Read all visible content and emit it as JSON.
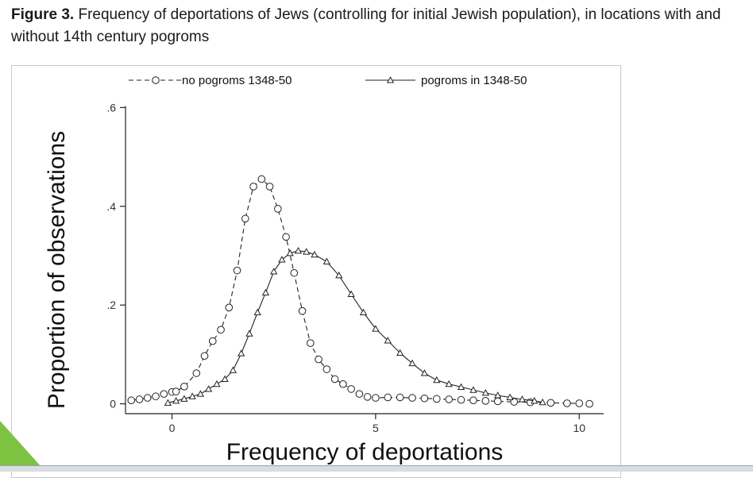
{
  "caption": {
    "label": "Figure 3.",
    "text": "Frequency of deportations of Jews (controlling for initial Jewish population), in locations with and without 14th century pogroms"
  },
  "chart_data": {
    "type": "line",
    "title": "",
    "xlabel": "Frequency of deportations",
    "ylabel": "Proportion of observations",
    "xlim": [
      -1.2,
      10.6
    ],
    "ylim": [
      -0.02,
      0.62
    ],
    "xticks": [
      0,
      5,
      10
    ],
    "xtick_labels": [
      "0",
      "5",
      "10"
    ],
    "yticks": [
      0,
      0.2,
      0.4,
      0.6
    ],
    "ytick_labels": [
      "0",
      ".2",
      ".4",
      ".6"
    ],
    "grid": false,
    "legend_position": "top",
    "series": [
      {
        "name": "no pogroms 1348-50",
        "line_style": "dashed",
        "marker": "circle",
        "color": "#222222",
        "points": [
          [
            -1.0,
            0.007
          ],
          [
            -0.8,
            0.009
          ],
          [
            -0.6,
            0.012
          ],
          [
            -0.4,
            0.015
          ],
          [
            -0.2,
            0.02
          ],
          [
            0.0,
            0.024
          ],
          [
            0.1,
            0.025
          ],
          [
            0.3,
            0.035
          ],
          [
            0.6,
            0.062
          ],
          [
            0.8,
            0.097
          ],
          [
            1.0,
            0.127
          ],
          [
            1.2,
            0.15
          ],
          [
            1.4,
            0.195
          ],
          [
            1.6,
            0.27
          ],
          [
            1.8,
            0.375
          ],
          [
            2.0,
            0.44
          ],
          [
            2.2,
            0.455
          ],
          [
            2.4,
            0.44
          ],
          [
            2.6,
            0.395
          ],
          [
            2.8,
            0.338
          ],
          [
            3.0,
            0.265
          ],
          [
            3.2,
            0.188
          ],
          [
            3.4,
            0.123
          ],
          [
            3.6,
            0.09
          ],
          [
            3.8,
            0.07
          ],
          [
            4.0,
            0.05
          ],
          [
            4.2,
            0.04
          ],
          [
            4.4,
            0.03
          ],
          [
            4.6,
            0.02
          ],
          [
            4.8,
            0.014
          ],
          [
            5.0,
            0.012
          ],
          [
            5.3,
            0.013
          ],
          [
            5.6,
            0.013
          ],
          [
            5.9,
            0.012
          ],
          [
            6.2,
            0.011
          ],
          [
            6.5,
            0.01
          ],
          [
            6.8,
            0.009
          ],
          [
            7.1,
            0.008
          ],
          [
            7.4,
            0.007
          ],
          [
            7.7,
            0.006
          ],
          [
            8.0,
            0.005
          ],
          [
            8.4,
            0.004
          ],
          [
            8.8,
            0.003
          ],
          [
            9.3,
            0.002
          ],
          [
            9.7,
            0.001
          ],
          [
            10.0,
            0.001
          ],
          [
            10.25,
            0.0
          ]
        ]
      },
      {
        "name": "pogroms in 1348-50",
        "line_style": "solid",
        "marker": "triangle",
        "color": "#222222",
        "points": [
          [
            -0.1,
            0.002
          ],
          [
            0.1,
            0.006
          ],
          [
            0.3,
            0.01
          ],
          [
            0.5,
            0.015
          ],
          [
            0.7,
            0.02
          ],
          [
            0.9,
            0.03
          ],
          [
            1.1,
            0.04
          ],
          [
            1.3,
            0.05
          ],
          [
            1.5,
            0.068
          ],
          [
            1.7,
            0.102
          ],
          [
            1.9,
            0.142
          ],
          [
            2.1,
            0.185
          ],
          [
            2.3,
            0.225
          ],
          [
            2.5,
            0.268
          ],
          [
            2.7,
            0.292
          ],
          [
            2.9,
            0.305
          ],
          [
            3.1,
            0.31
          ],
          [
            3.3,
            0.308
          ],
          [
            3.5,
            0.302
          ],
          [
            3.8,
            0.288
          ],
          [
            4.1,
            0.26
          ],
          [
            4.4,
            0.222
          ],
          [
            4.7,
            0.185
          ],
          [
            5.0,
            0.152
          ],
          [
            5.3,
            0.128
          ],
          [
            5.6,
            0.103
          ],
          [
            5.9,
            0.082
          ],
          [
            6.2,
            0.062
          ],
          [
            6.5,
            0.048
          ],
          [
            6.8,
            0.04
          ],
          [
            7.1,
            0.034
          ],
          [
            7.4,
            0.028
          ],
          [
            7.7,
            0.022
          ],
          [
            8.0,
            0.017
          ],
          [
            8.3,
            0.013
          ],
          [
            8.6,
            0.009
          ],
          [
            8.9,
            0.006
          ],
          [
            9.1,
            0.003
          ]
        ]
      }
    ]
  }
}
